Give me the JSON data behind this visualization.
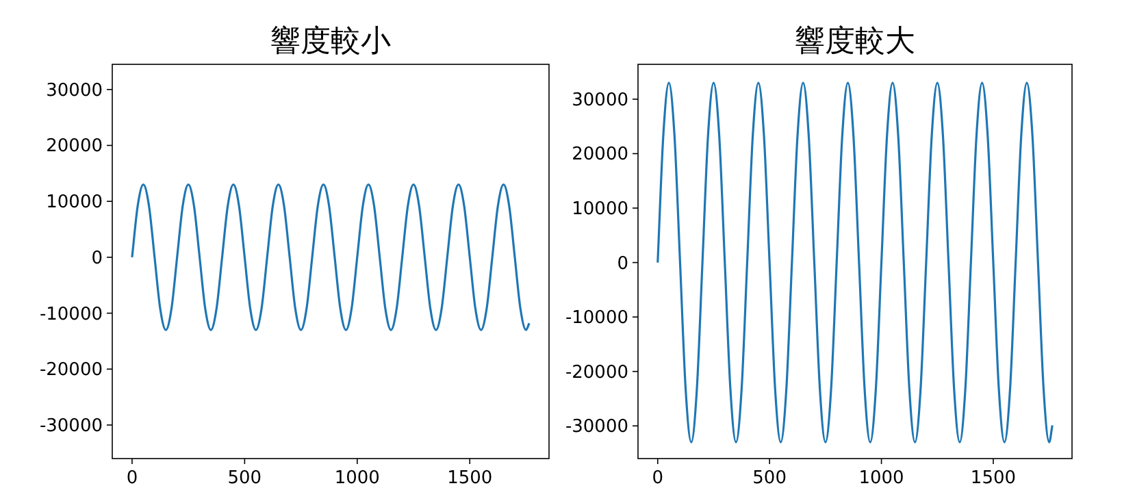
{
  "chart_data": [
    {
      "type": "line",
      "title": "響度較小",
      "xlim": [
        -88,
        1852
      ],
      "xticks": [
        0,
        500,
        1000,
        1500
      ],
      "ylim": [
        -36000,
        34500
      ],
      "yticks": [
        -30000,
        -20000,
        -10000,
        0,
        10000,
        20000,
        30000
      ],
      "series": [
        {
          "color": "#1f77b4",
          "x": [
            0,
            25,
            50,
            75,
            100,
            125,
            150,
            175,
            200,
            225,
            250,
            275,
            300,
            325,
            350,
            375,
            400,
            425,
            450,
            475,
            500,
            525,
            550,
            575,
            600,
            625,
            650,
            675,
            700,
            725,
            750,
            775,
            800,
            825,
            850,
            875,
            900,
            925,
            950,
            975,
            1000,
            1025,
            1050,
            1075,
            1100,
            1125,
            1150,
            1175,
            1200,
            1225,
            1250,
            1275,
            1300,
            1325,
            1350,
            1375,
            1400,
            1425,
            1450,
            1475,
            1500,
            1525,
            1550,
            1575,
            1600,
            1625,
            1650,
            1675,
            1700,
            1725,
            1750,
            1764
          ],
          "values": [
            0,
            9200,
            13000,
            9200,
            0,
            -9200,
            -13000,
            -9200,
            0,
            9200,
            13000,
            9200,
            0,
            -9200,
            -13000,
            -9200,
            0,
            9200,
            13000,
            9200,
            0,
            -9200,
            -13000,
            -9200,
            0,
            9200,
            13000,
            9200,
            0,
            -9200,
            -13000,
            -9200,
            0,
            9200,
            13000,
            9200,
            0,
            -9200,
            -13000,
            -9200,
            0,
            9200,
            13000,
            9200,
            0,
            -9200,
            -13000,
            -9200,
            0,
            9200,
            13000,
            9200,
            0,
            -9200,
            -13000,
            -9200,
            0,
            9200,
            13000,
            9200,
            0,
            -9200,
            -13000,
            -9200,
            0,
            9200,
            13000,
            9200,
            0,
            -9200,
            -13000,
            -11800
          ]
        }
      ]
    },
    {
      "type": "line",
      "title": "響度較大",
      "xlim": [
        -88,
        1852
      ],
      "xticks": [
        0,
        500,
        1000,
        1500
      ],
      "ylim": [
        -36000,
        36400
      ],
      "yticks": [
        -30000,
        -20000,
        -10000,
        0,
        10000,
        20000,
        30000
      ],
      "series": [
        {
          "color": "#1f77b4",
          "x": [
            0,
            25,
            50,
            75,
            100,
            125,
            150,
            175,
            200,
            225,
            250,
            275,
            300,
            325,
            350,
            375,
            400,
            425,
            450,
            475,
            500,
            525,
            550,
            575,
            600,
            625,
            650,
            675,
            700,
            725,
            750,
            775,
            800,
            825,
            850,
            875,
            900,
            925,
            950,
            975,
            1000,
            1025,
            1050,
            1075,
            1100,
            1125,
            1150,
            1175,
            1200,
            1225,
            1250,
            1275,
            1300,
            1325,
            1350,
            1375,
            1400,
            1425,
            1450,
            1475,
            1500,
            1525,
            1550,
            1575,
            1600,
            1625,
            1650,
            1675,
            1700,
            1725,
            1750,
            1764
          ],
          "values": [
            0,
            23300,
            33000,
            23300,
            0,
            -23300,
            -33000,
            -23300,
            0,
            23300,
            33000,
            23300,
            0,
            -23300,
            -33000,
            -23300,
            0,
            23300,
            33000,
            23300,
            0,
            -23300,
            -33000,
            -23300,
            0,
            23300,
            33000,
            23300,
            0,
            -23300,
            -33000,
            -23300,
            0,
            23300,
            33000,
            23300,
            0,
            -23300,
            -33000,
            -23300,
            0,
            23300,
            33000,
            23300,
            0,
            -23300,
            -33000,
            -23300,
            0,
            23300,
            33000,
            23300,
            0,
            -23300,
            -33000,
            -23300,
            0,
            23300,
            33000,
            23300,
            0,
            -23300,
            -33000,
            -23300,
            0,
            23300,
            33000,
            23300,
            0,
            -23300,
            -33000,
            -29900
          ]
        }
      ]
    }
  ]
}
